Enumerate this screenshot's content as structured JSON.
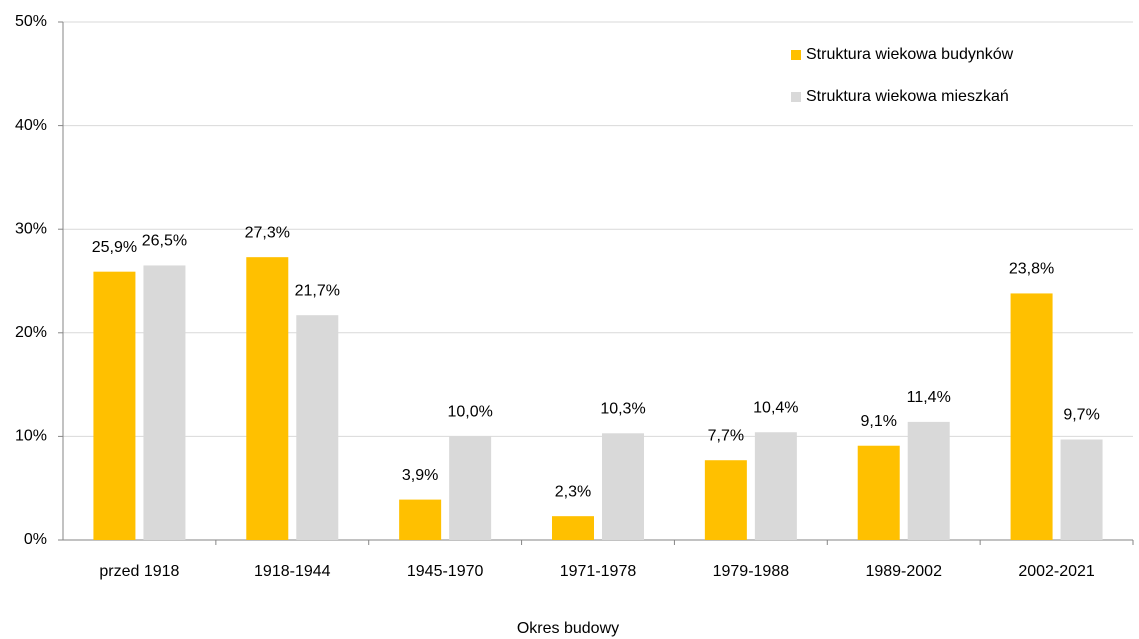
{
  "chart_data": {
    "type": "bar",
    "x_label": "Okres budowy",
    "categories": [
      "przed 1918",
      "1918-1944",
      "1945-1970",
      "1971-1978",
      "1979-1988",
      "1989-2002",
      "2002-2021"
    ],
    "series": [
      {
        "name": "Struktura wiekowa budynków",
        "color": "#FFC000",
        "values": [
          25.9,
          27.3,
          3.9,
          2.3,
          7.7,
          9.1,
          23.8
        ],
        "value_labels": [
          "25,9%",
          "27,3%",
          "3,9%",
          "2,3%",
          "7,7%",
          "9,1%",
          "23,8%"
        ]
      },
      {
        "name": "Struktura wiekowa mieszkań",
        "color": "#D9D9D9",
        "values": [
          26.5,
          21.7,
          10.0,
          10.3,
          10.4,
          11.4,
          9.7
        ],
        "value_labels": [
          "26,5%",
          "21,7%",
          "10,0%",
          "10,3%",
          "10,4%",
          "11,4%",
          "9,7%"
        ]
      }
    ],
    "ylim": [
      0,
      50
    ],
    "yticks": [
      {
        "value": 0,
        "label": "0%"
      },
      {
        "value": 10,
        "label": "10%"
      },
      {
        "value": 20,
        "label": "20%"
      },
      {
        "value": 30,
        "label": "30%"
      },
      {
        "value": 40,
        "label": "40%"
      },
      {
        "value": 50,
        "label": "50%"
      }
    ],
    "grid": true,
    "legend": "top-right"
  }
}
